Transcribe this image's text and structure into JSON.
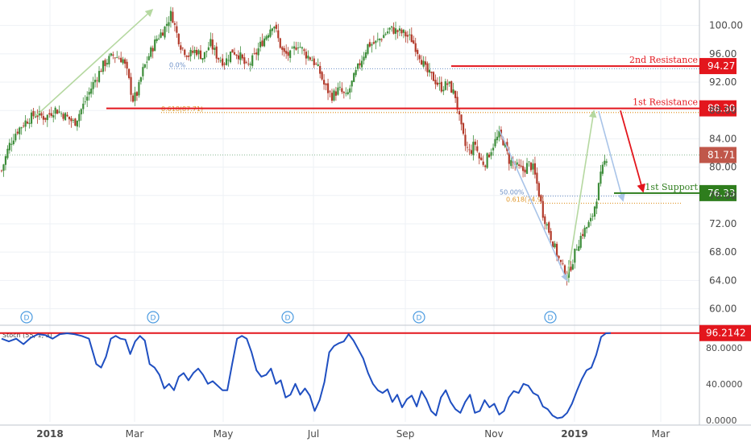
{
  "chart_data": [
    {
      "type": "candlestick",
      "x_ticks": [
        "2018",
        "Mar",
        "May",
        "Jul",
        "Sep",
        "Nov",
        "2019",
        "Mar"
      ],
      "y_ticks": [
        100.0,
        96.0,
        92.0,
        88.0,
        84.0,
        80.0,
        76.0,
        72.0,
        68.0,
        64.0,
        60.0
      ],
      "y_tick_labels": [
        "100.00",
        "96.00",
        "92.00",
        "88.00",
        "84.00",
        "80.00",
        "76.00",
        "72.00",
        "68.00",
        "64.00",
        "60.00"
      ],
      "ylim": [
        57.9,
        103.6
      ],
      "last_price": {
        "value": 81.71,
        "label": "81.71"
      },
      "levels": [
        {
          "name": "2nd Resistance",
          "value": 94.27,
          "label": "94.27",
          "color": "#e3161d"
        },
        {
          "name": "1st Resistance",
          "value": 88.3,
          "label": "88.30",
          "color": "#e3161d"
        },
        {
          "name": "1st Support",
          "value": 76.33,
          "label": "76.33",
          "color": "#2e7d1d"
        }
      ],
      "fib_labels": [
        {
          "text": "0.618(87.71)",
          "price": 87.71
        },
        {
          "text": "0.0%",
          "price": 93.9
        },
        {
          "text": "50.00%",
          "price": 75.9
        },
        {
          "text": "0.618(74.9)",
          "price": 74.9
        }
      ],
      "dividend_markers": [
        "D",
        "D",
        "D",
        "D",
        "D"
      ],
      "candles_note": "approximate daily price path",
      "price_path": [
        [
          0,
          79.5
        ],
        [
          3,
          83
        ],
        [
          6,
          85
        ],
        [
          10,
          86.5
        ],
        [
          14,
          87.5
        ],
        [
          18,
          87
        ],
        [
          22,
          88.2
        ],
        [
          26,
          87.3
        ],
        [
          30,
          86.2
        ],
        [
          34,
          89
        ],
        [
          38,
          92
        ],
        [
          42,
          94.5
        ],
        [
          46,
          95.8
        ],
        [
          50,
          95.2
        ],
        [
          52,
          93
        ],
        [
          54,
          89.5
        ],
        [
          56,
          90.5
        ],
        [
          58,
          93.5
        ],
        [
          61,
          96
        ],
        [
          64,
          98.2
        ],
        [
          67,
          99.5
        ],
        [
          70,
          101.8
        ],
        [
          72,
          99
        ],
        [
          74,
          97
        ],
        [
          77,
          95.8
        ],
        [
          80,
          96.5
        ],
        [
          83,
          95.5
        ],
        [
          86,
          97.5
        ],
        [
          89,
          95.5
        ],
        [
          92,
          94.8
        ],
        [
          95,
          96.5
        ],
        [
          98,
          95.8
        ],
        [
          101,
          94
        ],
        [
          104,
          95.5
        ],
        [
          107,
          97.5
        ],
        [
          110,
          99.2
        ],
        [
          112,
          100.5
        ],
        [
          114,
          98
        ],
        [
          116,
          96
        ],
        [
          119,
          95.8
        ],
        [
          122,
          97.5
        ],
        [
          125,
          96
        ],
        [
          128,
          95.2
        ],
        [
          131,
          93.5
        ],
        [
          133,
          91.5
        ],
        [
          136,
          90
        ],
        [
          139,
          91
        ],
        [
          142,
          89.8
        ],
        [
          145,
          92.5
        ],
        [
          148,
          95
        ],
        [
          151,
          97.3
        ],
        [
          154,
          97.5
        ],
        [
          157,
          98.5
        ],
        [
          160,
          99.5
        ],
        [
          163,
          99.2
        ],
        [
          166,
          98.8
        ],
        [
          169,
          98
        ],
        [
          172,
          96
        ],
        [
          175,
          93.5
        ],
        [
          178,
          92.5
        ],
        [
          181,
          91.2
        ],
        [
          184,
          91.8
        ],
        [
          187,
          90
        ],
        [
          189,
          86
        ],
        [
          191,
          83
        ],
        [
          193,
          82
        ],
        [
          195,
          83.5
        ],
        [
          197,
          81
        ],
        [
          199,
          80.5
        ],
        [
          201,
          82
        ],
        [
          203,
          83.5
        ],
        [
          205,
          84.5
        ],
        [
          207,
          83.5
        ],
        [
          209,
          81
        ],
        [
          211,
          80.5
        ],
        [
          213,
          79.8
        ],
        [
          215,
          79.5
        ],
        [
          217,
          80.5
        ],
        [
          219,
          79.8
        ],
        [
          221,
          77
        ],
        [
          223,
          73.5
        ],
        [
          225,
          71.5
        ],
        [
          227,
          69.5
        ],
        [
          229,
          67.5
        ],
        [
          231,
          65.8
        ],
        [
          233,
          64.6
        ],
        [
          235,
          66.5
        ],
        [
          237,
          68.8
        ],
        [
          239,
          70.5
        ],
        [
          241,
          71.5
        ],
        [
          243,
          72.5
        ],
        [
          245,
          75.5
        ],
        [
          247,
          79
        ],
        [
          249,
          81.3
        ],
        [
          250,
          81.7
        ]
      ],
      "stochastic": {
        "label": "Stoch (55, 1, 3)",
        "level_label": "96.2142",
        "y_ticks": [
          80.0,
          40.0,
          0.0
        ],
        "y_tick_labels": [
          "80.0000",
          "40.0000",
          "0.0000"
        ],
        "ylim": [
          -2,
          104
        ],
        "series": [
          [
            0,
            90
          ],
          [
            3,
            87
          ],
          [
            6,
            90
          ],
          [
            9,
            84
          ],
          [
            12,
            91
          ],
          [
            15,
            95
          ],
          [
            18,
            94
          ],
          [
            21,
            90
          ],
          [
            24,
            95
          ],
          [
            27,
            96
          ],
          [
            30,
            95
          ],
          [
            33,
            93
          ],
          [
            36,
            90
          ],
          [
            39,
            62
          ],
          [
            41,
            58
          ],
          [
            43,
            70
          ],
          [
            45,
            90
          ],
          [
            47,
            93
          ],
          [
            49,
            90
          ],
          [
            51,
            89
          ],
          [
            53,
            73
          ],
          [
            55,
            87
          ],
          [
            57,
            93
          ],
          [
            59,
            88
          ],
          [
            61,
            62
          ],
          [
            63,
            58
          ],
          [
            65,
            50
          ],
          [
            67,
            35
          ],
          [
            69,
            40
          ],
          [
            71,
            33
          ],
          [
            73,
            48
          ],
          [
            75,
            52
          ],
          [
            77,
            44
          ],
          [
            79,
            52
          ],
          [
            81,
            57
          ],
          [
            83,
            50
          ],
          [
            85,
            40
          ],
          [
            87,
            43
          ],
          [
            89,
            38
          ],
          [
            91,
            33
          ],
          [
            93,
            33
          ],
          [
            95,
            62
          ],
          [
            97,
            90
          ],
          [
            99,
            93
          ],
          [
            101,
            90
          ],
          [
            103,
            75
          ],
          [
            105,
            55
          ],
          [
            107,
            48
          ],
          [
            109,
            50
          ],
          [
            111,
            57
          ],
          [
            113,
            40
          ],
          [
            115,
            44
          ],
          [
            117,
            25
          ],
          [
            119,
            28
          ],
          [
            121,
            40
          ],
          [
            123,
            28
          ],
          [
            125,
            35
          ],
          [
            127,
            27
          ],
          [
            129,
            10
          ],
          [
            131,
            22
          ],
          [
            133,
            42
          ],
          [
            135,
            75
          ],
          [
            137,
            82
          ],
          [
            139,
            85
          ],
          [
            141,
            87
          ],
          [
            143,
            95
          ],
          [
            145,
            88
          ],
          [
            147,
            78
          ],
          [
            149,
            68
          ],
          [
            151,
            52
          ],
          [
            153,
            40
          ],
          [
            155,
            33
          ],
          [
            157,
            30
          ],
          [
            159,
            34
          ],
          [
            161,
            20
          ],
          [
            163,
            28
          ],
          [
            165,
            14
          ],
          [
            167,
            23
          ],
          [
            169,
            27
          ],
          [
            171,
            15
          ],
          [
            173,
            32
          ],
          [
            175,
            23
          ],
          [
            177,
            10
          ],
          [
            179,
            5
          ],
          [
            181,
            25
          ],
          [
            183,
            33
          ],
          [
            185,
            20
          ],
          [
            187,
            12
          ],
          [
            189,
            8
          ],
          [
            191,
            20
          ],
          [
            193,
            28
          ],
          [
            195,
            8
          ],
          [
            197,
            10
          ],
          [
            199,
            22
          ],
          [
            201,
            14
          ],
          [
            203,
            18
          ],
          [
            205,
            6
          ],
          [
            207,
            10
          ],
          [
            209,
            25
          ],
          [
            211,
            32
          ],
          [
            213,
            30
          ],
          [
            215,
            40
          ],
          [
            217,
            38
          ],
          [
            219,
            30
          ],
          [
            221,
            27
          ],
          [
            223,
            15
          ],
          [
            225,
            12
          ],
          [
            227,
            5
          ],
          [
            229,
            2
          ],
          [
            231,
            3
          ],
          [
            233,
            8
          ],
          [
            235,
            18
          ],
          [
            237,
            32
          ],
          [
            239,
            45
          ],
          [
            241,
            55
          ],
          [
            243,
            58
          ],
          [
            245,
            72
          ],
          [
            247,
            92
          ],
          [
            249,
            96
          ],
          [
            251,
            96.2
          ]
        ]
      }
    }
  ],
  "colors": {
    "up": "#3d8d3a",
    "down": "#b23a2a",
    "resistance": "#e3161d",
    "support": "#2e7d1d",
    "last_price": "#c0574a",
    "stoch_line": "#1f4fc1",
    "axis_text": "#4a4a4a",
    "fib_blue": "#6b8fc7",
    "fib_orange": "#e0982d",
    "pattern_green": "#b5d8a0",
    "pattern_blue": "#a9c4e8",
    "grid": "#eef1f5"
  }
}
